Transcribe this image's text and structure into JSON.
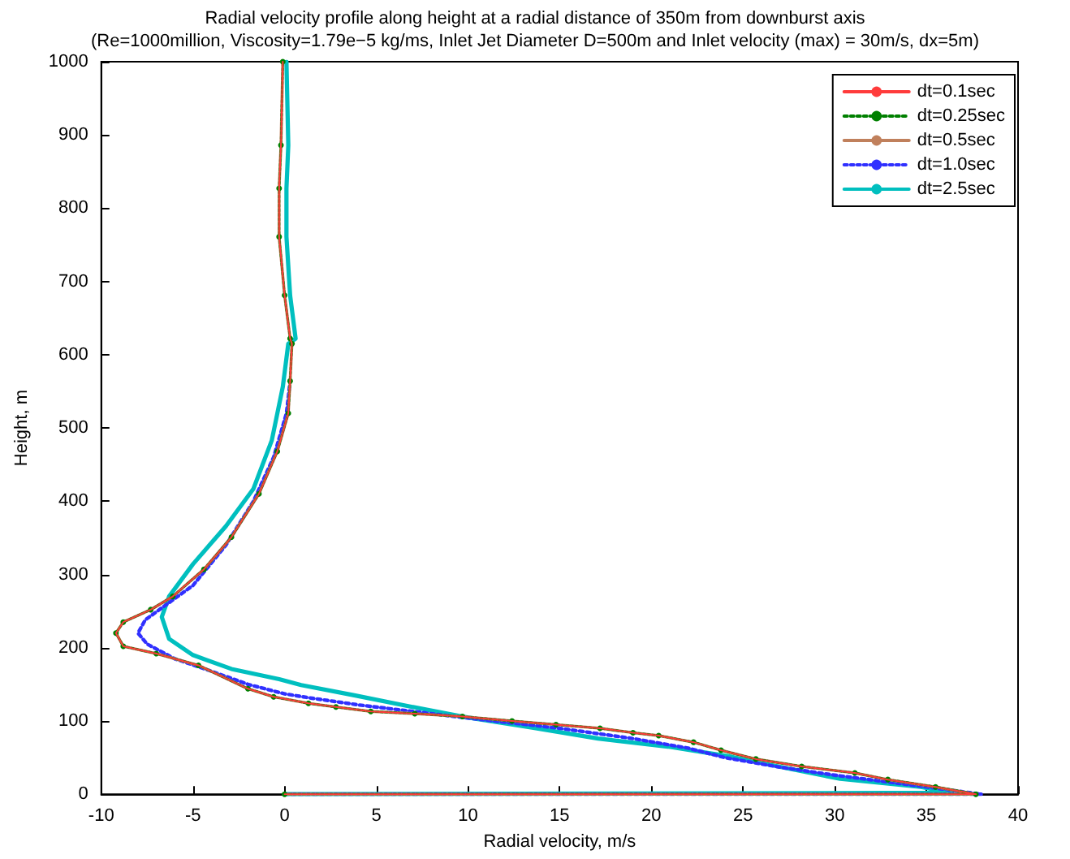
{
  "chart_data": {
    "type": "line",
    "title": "Radial velocity profile along height at a radial distance of 350m from downburst axis",
    "subtitle": "(Re=1000million, Viscosity=1.79e−5 kg/ms, Inlet Jet Diameter D=500m and Inlet velocity (max) = 30m/s, dx=5m)",
    "xlabel": "Radial velocity, m/s",
    "ylabel": "Height, m",
    "xlim": [
      -10,
      40
    ],
    "xticks": [
      -10,
      -5,
      0,
      5,
      10,
      15,
      20,
      25,
      30,
      35,
      40
    ],
    "ylim": [
      0,
      1000
    ],
    "yticks": [
      0,
      100,
      200,
      300,
      400,
      500,
      600,
      700,
      800,
      900,
      1000
    ],
    "grid": false,
    "legend": "top right",
    "marker": "none",
    "line_style": "solid",
    "series": [
      {
        "name": "dt=0.1sec",
        "color": "#ff3b3b",
        "x": [
          0,
          37.7,
          35.5,
          32.9,
          31.1,
          28.2,
          25.7,
          23.8,
          22.3,
          20.4,
          19,
          17.2,
          14.8,
          12.4,
          9.7,
          7.1,
          4.7,
          2.8,
          1.3,
          -0.6,
          -2.0,
          -4.7,
          -7.0,
          -8.8,
          -9.2,
          -8.8,
          -7.3,
          -6.1,
          -4.4,
          -2.9,
          -1.4,
          -0.4,
          0.2,
          0.3,
          0.4,
          0.3,
          0,
          -0.3,
          -0.3,
          -0.2,
          -0.1
        ],
        "values": [
          0,
          0,
          10,
          20,
          29,
          38,
          48,
          60,
          71,
          80,
          84,
          90,
          95,
          100,
          106,
          110,
          113,
          119,
          124,
          133,
          144,
          176,
          192,
          202,
          220,
          235,
          252,
          270,
          307,
          351,
          410,
          468,
          520,
          564,
          615,
          622,
          681,
          761,
          827,
          886,
          1000
        ]
      },
      {
        "name": "dt=0.25sec",
        "color": "#008000",
        "line_style": "dotted",
        "marker": "circle",
        "x": [
          0,
          37.7,
          35.5,
          32.9,
          31.1,
          28.2,
          25.7,
          23.8,
          22.3,
          20.4,
          19,
          17.2,
          14.8,
          12.4,
          9.7,
          7.1,
          4.7,
          2.8,
          1.3,
          -0.6,
          -2.0,
          -4.7,
          -7.0,
          -8.8,
          -9.2,
          -8.8,
          -7.3,
          -6.1,
          -4.4,
          -2.9,
          -1.4,
          -0.4,
          0.2,
          0.3,
          0.4,
          0.3,
          0,
          -0.3,
          -0.3,
          -0.2,
          -0.1
        ],
        "values": [
          0,
          0,
          10,
          20,
          29,
          38,
          48,
          60,
          71,
          80,
          84,
          90,
          95,
          100,
          106,
          110,
          113,
          119,
          124,
          133,
          144,
          176,
          192,
          202,
          220,
          235,
          252,
          270,
          307,
          351,
          410,
          468,
          520,
          564,
          615,
          622,
          681,
          761,
          827,
          886,
          1000
        ]
      },
      {
        "name": "dt=0.5sec",
        "color": "#c0805c",
        "x": [
          0,
          37.7,
          35.5,
          32.9,
          31.1,
          28.2,
          25.7,
          23.8,
          22.3,
          20.4,
          19,
          17.2,
          14.8,
          12.4,
          9.7,
          7.1,
          4.7,
          2.8,
          1.3,
          -0.6,
          -2.0,
          -4.7,
          -7.0,
          -8.8,
          -9.2,
          -8.8,
          -7.3,
          -6.1,
          -4.4,
          -2.9,
          -1.4,
          -0.4,
          0.2,
          0.3,
          0.4,
          0.3,
          0,
          -0.3,
          -0.3,
          -0.2,
          -0.1
        ],
        "values": [
          0,
          0,
          10,
          20,
          29,
          38,
          48,
          60,
          71,
          80,
          84,
          90,
          95,
          100,
          106,
          110,
          113,
          119,
          124,
          133,
          144,
          176,
          192,
          202,
          220,
          235,
          252,
          270,
          307,
          351,
          410,
          468,
          520,
          564,
          615,
          622,
          681,
          761,
          827,
          886,
          1000
        ]
      },
      {
        "name": "dt=1.0sec",
        "color": "#3030ff",
        "line_style": "dotted",
        "x": [
          0,
          38,
          35,
          30,
          27,
          24,
          22,
          19,
          15,
          10,
          7,
          4,
          1.5,
          0,
          -2,
          -4,
          -6,
          -7.5,
          -8,
          -7.6,
          -6.5,
          -5,
          -3.2,
          -1.7,
          -0.6,
          0.1,
          0.3
        ],
        "values": [
          0,
          0,
          10,
          26,
          37,
          50,
          63,
          76,
          90,
          104,
          113,
          122,
          131,
          137,
          150,
          168,
          185,
          205,
          220,
          238,
          258,
          285,
          340,
          400,
          460,
          520,
          564
        ]
      },
      {
        "name": "dt=2.5sec",
        "color": "#00bfbf",
        "x": [
          0,
          36.4,
          34.7,
          30.3,
          27.3,
          24.4,
          20.9,
          17.1,
          13.5,
          9.7,
          6.8,
          3.8,
          0.9,
          -0.3,
          -2.9,
          -5.0,
          -6.3,
          -6.7,
          -6.3,
          -5.0,
          -3.2,
          -1.7,
          -0.7,
          -0.1,
          0.2,
          0.6,
          0.3,
          0.1,
          0.1,
          0.2,
          0.1
        ],
        "values": [
          0,
          2,
          10,
          21,
          36,
          51,
          65,
          76,
          91,
          106,
          120,
          135,
          149,
          157,
          171,
          190,
          212,
          242,
          270,
          314,
          366,
          417,
          483,
          556,
          615,
          622,
          681,
          761,
          827,
          886,
          1000
        ]
      }
    ]
  }
}
